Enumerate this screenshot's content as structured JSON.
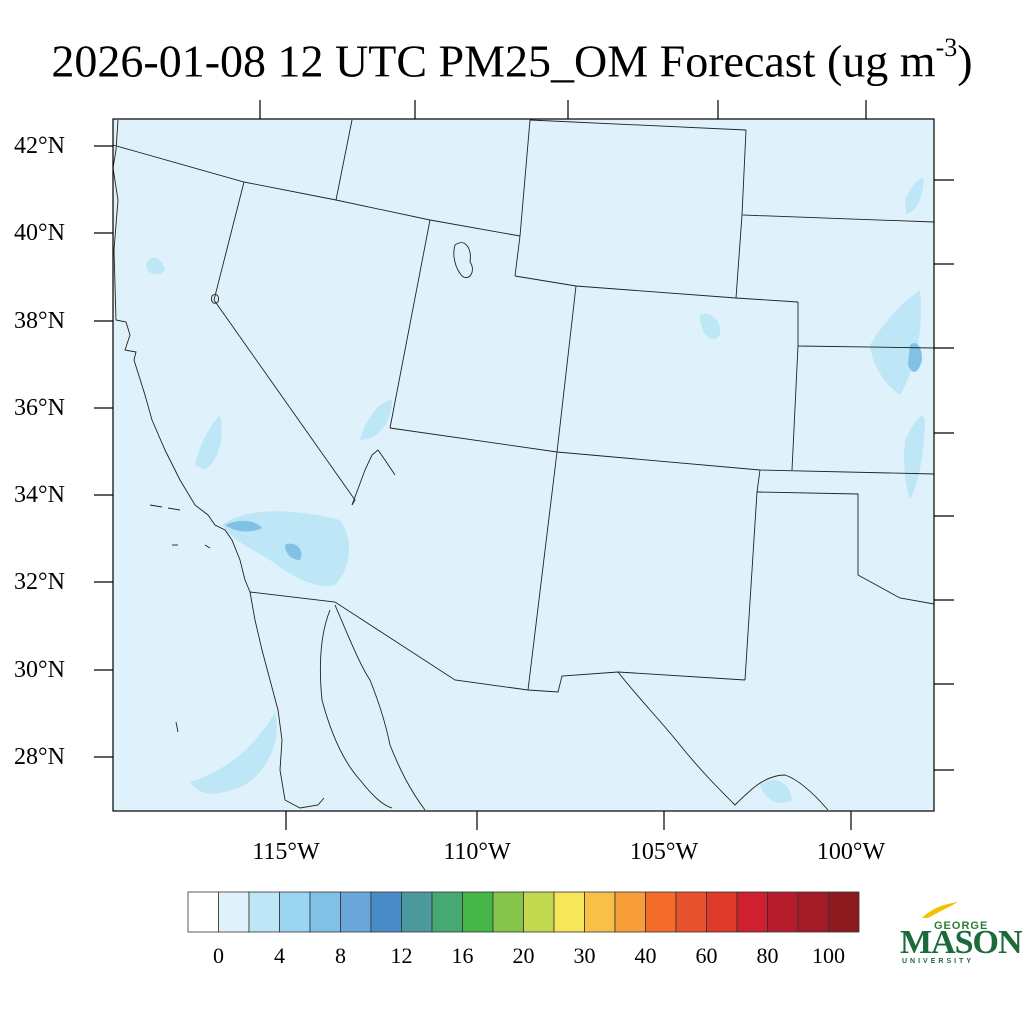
{
  "title": {
    "main": "2026-01-08 12 UTC PM25_OM Forecast (ug m",
    "superscript": "-3",
    "close": ")"
  },
  "map": {
    "background_color": "#dff2fb",
    "lat_labels": [
      "42°N",
      "40°N",
      "38°N",
      "36°N",
      "34°N",
      "32°N",
      "30°N",
      "28°N"
    ],
    "lon_labels": [
      "115°W",
      "110°W",
      "105°W",
      "100°W"
    ]
  },
  "colorbar": {
    "colors": [
      "#ffffff",
      "#dff2fb",
      "#bde6f6",
      "#9bd5f1",
      "#82c1e6",
      "#6aa6d9",
      "#4a8bc9",
      "#4a9a9c",
      "#46a873",
      "#45b549",
      "#86c34a",
      "#c2d84f",
      "#f5e65a",
      "#f8c048",
      "#f79e3a",
      "#f46c2a",
      "#e6512e",
      "#dd3a2a",
      "#cf2030",
      "#b51c2b",
      "#a31b25",
      "#8c1a1f"
    ],
    "labels": [
      "0",
      "4",
      "8",
      "12",
      "16",
      "20",
      "30",
      "40",
      "60",
      "80",
      "100"
    ]
  },
  "logo": {
    "line1": "GEORGE",
    "line2": "MASON",
    "line3": "UNIVERSITY",
    "color": "#1b6a3a",
    "accent": "#f2c200"
  }
}
